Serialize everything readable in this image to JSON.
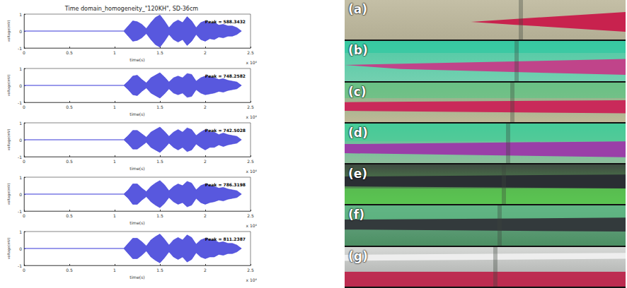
{
  "title": "Time domain_homogeneity_\"120KH\", SD-36cm",
  "chart_data": [
    {
      "type": "area",
      "annotation": "Peak = 588.3432",
      "xlabel": "time(s)",
      "ylabel": "voltage(mV)",
      "x_multiplier": "x 10⁴",
      "color": "#3b3bd8",
      "grid": false,
      "xlim": [
        0,
        2.5
      ],
      "xticks": [
        0,
        0.5,
        1,
        1.5,
        2,
        2.5
      ],
      "ylim": [
        -1,
        1
      ],
      "yticks": [
        -1,
        0,
        1
      ],
      "x": [
        0,
        1.1,
        1.15,
        1.2,
        1.25,
        1.3,
        1.35,
        1.4,
        1.45,
        1.5,
        1.55,
        1.6,
        1.65,
        1.7,
        1.75,
        1.8,
        1.85,
        1.9,
        1.95,
        2.0,
        2.05,
        2.1,
        2.15,
        2.2,
        2.25,
        2.3,
        2.35,
        2.4
      ],
      "upper": [
        0,
        0,
        0.3,
        0.6,
        0.55,
        0.4,
        0.15,
        0.5,
        0.8,
        0.95,
        0.6,
        0.2,
        0.5,
        0.65,
        0.5,
        0.85,
        0.6,
        0.2,
        0.5,
        0.6,
        0.45,
        0.5,
        0.35,
        0.4,
        0.3,
        0.3,
        0.2,
        0
      ],
      "lower": [
        0,
        0,
        -0.3,
        -0.6,
        -0.55,
        -0.4,
        -0.15,
        -0.5,
        -0.8,
        -0.95,
        -0.6,
        -0.2,
        -0.5,
        -0.65,
        -0.5,
        -0.85,
        -0.6,
        -0.2,
        -0.5,
        -0.6,
        -0.45,
        -0.5,
        -0.35,
        -0.4,
        -0.3,
        -0.3,
        -0.2,
        0
      ]
    },
    {
      "type": "area",
      "annotation": "Peak = 748.2582",
      "xlabel": "time(s)",
      "ylabel": "voltage(mV)",
      "x_multiplier": "x 10⁴",
      "color": "#3b3bd8",
      "grid": false,
      "xlim": [
        0,
        2.5
      ],
      "xticks": [
        0,
        0.5,
        1,
        1.5,
        2,
        2.5
      ],
      "ylim": [
        -1,
        1
      ],
      "yticks": [
        -1,
        0,
        1
      ],
      "x": [
        0,
        1.1,
        1.15,
        1.2,
        1.25,
        1.3,
        1.35,
        1.4,
        1.45,
        1.5,
        1.55,
        1.6,
        1.65,
        1.7,
        1.75,
        1.8,
        1.85,
        1.9,
        1.95,
        2.0,
        2.05,
        2.1,
        2.15,
        2.2,
        2.25,
        2.3,
        2.35,
        2.4
      ],
      "upper": [
        0,
        0,
        0.25,
        0.55,
        0.6,
        0.35,
        0.15,
        0.45,
        0.6,
        0.75,
        0.5,
        0.2,
        0.45,
        0.55,
        0.45,
        0.7,
        0.65,
        0.25,
        0.45,
        0.55,
        0.5,
        0.45,
        0.35,
        0.4,
        0.3,
        0.25,
        0.2,
        0
      ],
      "lower": [
        0,
        0,
        -0.25,
        -0.55,
        -0.6,
        -0.35,
        -0.15,
        -0.45,
        -0.6,
        -0.75,
        -0.5,
        -0.2,
        -0.45,
        -0.55,
        -0.45,
        -0.7,
        -0.65,
        -0.25,
        -0.45,
        -0.55,
        -0.5,
        -0.45,
        -0.35,
        -0.4,
        -0.3,
        -0.25,
        -0.2,
        0
      ]
    },
    {
      "type": "area",
      "annotation": "Peak = 742.5028",
      "xlabel": "time(s)",
      "ylabel": "voltage(mV)",
      "x_multiplier": "x 10⁴",
      "color": "#3b3bd8",
      "grid": false,
      "xlim": [
        0,
        2.5
      ],
      "xticks": [
        0,
        0.5,
        1,
        1.5,
        2,
        2.5
      ],
      "ylim": [
        -1,
        1
      ],
      "yticks": [
        -1,
        0,
        1
      ],
      "x": [
        0,
        1.1,
        1.15,
        1.2,
        1.25,
        1.3,
        1.35,
        1.4,
        1.45,
        1.5,
        1.55,
        1.6,
        1.65,
        1.7,
        1.75,
        1.8,
        1.85,
        1.9,
        1.95,
        2.0,
        2.05,
        2.1,
        2.15,
        2.2,
        2.25,
        2.3,
        2.35,
        2.4
      ],
      "upper": [
        0,
        0,
        0.25,
        0.55,
        0.55,
        0.35,
        0.15,
        0.45,
        0.6,
        0.75,
        0.5,
        0.2,
        0.45,
        0.6,
        0.45,
        0.7,
        0.6,
        0.25,
        0.45,
        0.6,
        0.45,
        0.45,
        0.3,
        0.4,
        0.3,
        0.25,
        0.2,
        0
      ],
      "lower": [
        0,
        0,
        -0.25,
        -0.55,
        -0.55,
        -0.35,
        -0.15,
        -0.45,
        -0.6,
        -0.75,
        -0.5,
        -0.2,
        -0.45,
        -0.6,
        -0.45,
        -0.7,
        -0.6,
        -0.25,
        -0.45,
        -0.6,
        -0.45,
        -0.45,
        -0.3,
        -0.4,
        -0.3,
        -0.25,
        -0.2,
        0
      ]
    },
    {
      "type": "area",
      "annotation": "Peak = 786.3198",
      "xlabel": "time(s)",
      "ylabel": "voltage(mV)",
      "x_multiplier": "x 10⁴",
      "color": "#3b3bd8",
      "grid": false,
      "xlim": [
        0,
        2.5
      ],
      "xticks": [
        0,
        0.5,
        1,
        1.5,
        2,
        2.5
      ],
      "ylim": [
        -1,
        1
      ],
      "yticks": [
        -1,
        0,
        1
      ],
      "x": [
        0,
        1.1,
        1.15,
        1.2,
        1.25,
        1.3,
        1.35,
        1.4,
        1.45,
        1.5,
        1.55,
        1.6,
        1.65,
        1.7,
        1.75,
        1.8,
        1.85,
        1.9,
        1.95,
        2.0,
        2.05,
        2.1,
        2.15,
        2.2,
        2.25,
        2.3,
        2.35,
        2.4
      ],
      "upper": [
        0,
        0,
        0.25,
        0.6,
        0.6,
        0.35,
        0.15,
        0.45,
        0.65,
        0.8,
        0.55,
        0.2,
        0.45,
        0.6,
        0.5,
        0.75,
        0.65,
        0.25,
        0.5,
        0.6,
        0.5,
        0.45,
        0.35,
        0.4,
        0.3,
        0.25,
        0.2,
        0
      ],
      "lower": [
        0,
        0,
        -0.25,
        -0.6,
        -0.6,
        -0.35,
        -0.15,
        -0.45,
        -0.65,
        -0.8,
        -0.55,
        -0.2,
        -0.45,
        -0.6,
        -0.5,
        -0.75,
        -0.65,
        -0.25,
        -0.5,
        -0.6,
        -0.5,
        -0.45,
        -0.35,
        -0.4,
        -0.3,
        -0.25,
        -0.2,
        0
      ]
    },
    {
      "type": "area",
      "annotation": "Peak = 811.2387",
      "xlabel": "time(s)",
      "ylabel": "voltage(mV)",
      "x_multiplier": "x 10⁴",
      "color": "#3b3bd8",
      "grid": false,
      "xlim": [
        0,
        2.5
      ],
      "xticks": [
        0,
        0.5,
        1,
        1.5,
        2,
        2.5
      ],
      "ylim": [
        -1,
        1
      ],
      "yticks": [
        -1,
        0,
        1
      ],
      "x": [
        0,
        1.1,
        1.15,
        1.2,
        1.25,
        1.3,
        1.35,
        1.4,
        1.45,
        1.5,
        1.55,
        1.6,
        1.65,
        1.7,
        1.75,
        1.8,
        1.85,
        1.9,
        1.95,
        2.0,
        2.05,
        2.1,
        2.15,
        2.2,
        2.25,
        2.3,
        2.35,
        2.4
      ],
      "upper": [
        0,
        0,
        0.3,
        0.6,
        0.6,
        0.4,
        0.15,
        0.5,
        0.7,
        0.85,
        0.55,
        0.2,
        0.5,
        0.65,
        0.5,
        0.8,
        0.65,
        0.25,
        0.5,
        0.6,
        0.5,
        0.5,
        0.35,
        0.4,
        0.3,
        0.3,
        0.2,
        0
      ],
      "lower": [
        0,
        0,
        -0.3,
        -0.6,
        -0.6,
        -0.4,
        -0.15,
        -0.5,
        -0.7,
        -0.85,
        -0.55,
        -0.2,
        -0.5,
        -0.65,
        -0.5,
        -0.8,
        -0.65,
        -0.25,
        -0.5,
        -0.6,
        -0.5,
        -0.5,
        -0.35,
        -0.4,
        -0.3,
        -0.3,
        -0.2,
        0
      ]
    }
  ],
  "photos": [
    {
      "label": "(a)"
    },
    {
      "label": "(b)"
    },
    {
      "label": "(c)"
    },
    {
      "label": "(d)"
    },
    {
      "label": "(e)"
    },
    {
      "label": "(f)"
    },
    {
      "label": "(g)"
    }
  ]
}
